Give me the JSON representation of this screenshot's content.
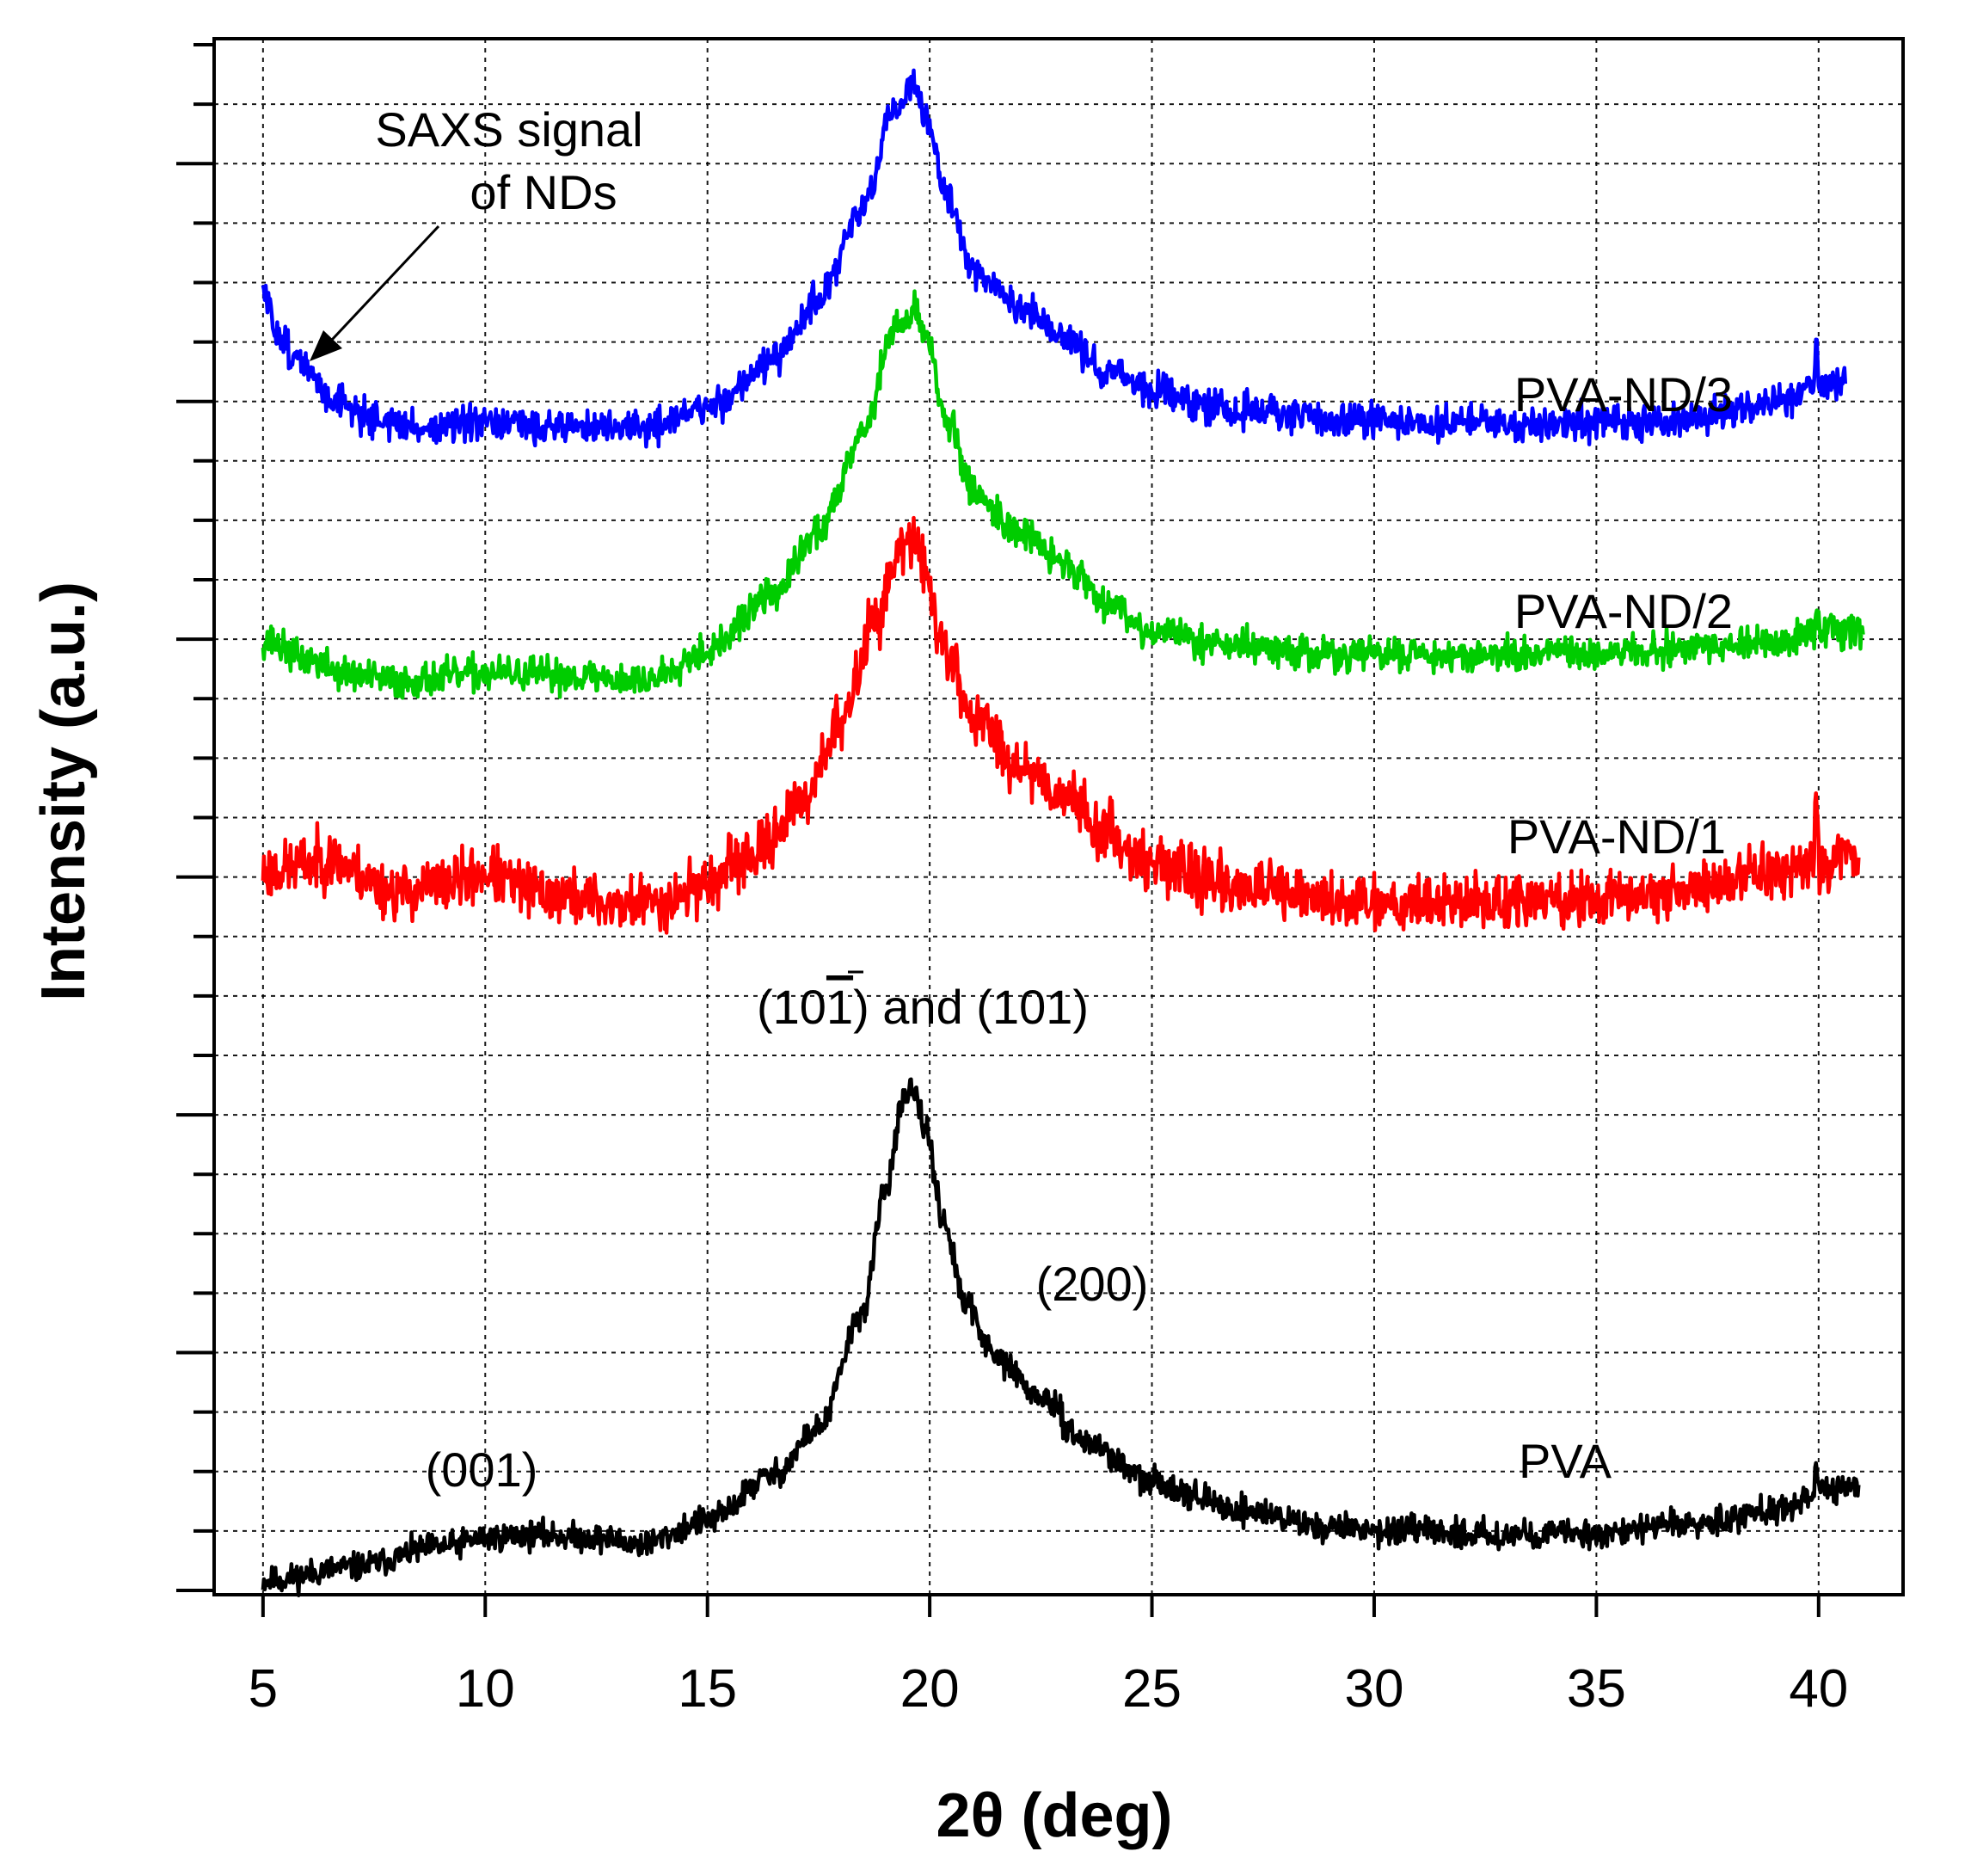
{
  "chart_data": {
    "type": "line",
    "title": "",
    "xlabel": "2θ (deg)",
    "ylabel": "Intensity (a.u.)",
    "xlim": [
      3.9,
      41.9
    ],
    "ylim": [
      0,
      100
    ],
    "xticks": [
      5,
      10,
      15,
      20,
      25,
      30,
      35,
      40
    ],
    "y_tick_count": 27,
    "grid": true,
    "series": [
      {
        "name": "PVA",
        "label": "PVA",
        "color": "#000000",
        "noise": 0.45,
        "seed": 11,
        "points": [
          [
            5,
            0.6
          ],
          [
            7,
            1.5
          ],
          [
            9,
            2.8
          ],
          [
            10,
            3.4
          ],
          [
            11,
            3.6
          ],
          [
            12.5,
            3.4
          ],
          [
            13.5,
            3.0
          ],
          [
            15,
            4.5
          ],
          [
            16.5,
            7.5
          ],
          [
            17.5,
            10.5
          ],
          [
            18.5,
            18
          ],
          [
            19,
            26
          ],
          [
            19.4,
            31.5
          ],
          [
            19.6,
            32.3
          ],
          [
            19.9,
            30
          ],
          [
            20.3,
            24
          ],
          [
            20.8,
            18.5
          ],
          [
            21.5,
            15
          ],
          [
            22.5,
            12.5
          ],
          [
            23.5,
            9.6
          ],
          [
            25,
            7
          ],
          [
            27,
            5.2
          ],
          [
            29,
            4.1
          ],
          [
            31,
            3.8
          ],
          [
            33,
            3.6
          ],
          [
            35,
            3.7
          ],
          [
            37,
            4.3
          ],
          [
            39,
            5.2
          ],
          [
            40,
            6.2
          ],
          [
            40.9,
            7.0
          ]
        ],
        "spikes": [
          [
            39.95,
            2.0
          ]
        ]
      },
      {
        "name": "PVA-ND/1",
        "label": "PVA-ND/1",
        "color": "#ff0000",
        "noise": 0.9,
        "seed": 23,
        "points": [
          [
            5,
            46.5
          ],
          [
            6.5,
            47.2
          ],
          [
            8,
            45.2
          ],
          [
            9,
            45.6
          ],
          [
            10,
            46.4
          ],
          [
            11,
            45.3
          ],
          [
            12,
            44.8
          ],
          [
            13,
            44.3
          ],
          [
            14,
            44.6
          ],
          [
            15,
            45.8
          ],
          [
            16,
            47.5
          ],
          [
            17,
            50.5
          ],
          [
            18,
            56
          ],
          [
            18.8,
            63
          ],
          [
            19.3,
            67
          ],
          [
            19.6,
            68
          ],
          [
            19.9,
            66
          ],
          [
            20.3,
            61
          ],
          [
            21,
            56.5
          ],
          [
            22,
            53.5
          ],
          [
            23,
            51.5
          ],
          [
            24,
            49
          ],
          [
            25,
            47
          ],
          [
            27,
            45.5
          ],
          [
            29,
            44.6
          ],
          [
            31,
            44.6
          ],
          [
            33,
            44.5
          ],
          [
            35,
            44.7
          ],
          [
            37,
            45.4
          ],
          [
            39,
            46.5
          ],
          [
            40,
            47.2
          ],
          [
            40.9,
            48.2
          ]
        ],
        "spikes": [
          [
            39.95,
            5.5
          ],
          [
            6.5,
            1.2
          ]
        ]
      },
      {
        "name": "PVA-ND/2",
        "label": "PVA-ND/2",
        "color": "#00cc00",
        "noise": 0.55,
        "seed": 37,
        "points": [
          [
            5,
            61.5
          ],
          [
            6,
            60.2
          ],
          [
            7,
            59.2
          ],
          [
            8,
            58.8
          ],
          [
            10,
            59.3
          ],
          [
            12,
            59.2
          ],
          [
            13.5,
            58.8
          ],
          [
            15,
            60.8
          ],
          [
            16.5,
            64.5
          ],
          [
            17.5,
            68.5
          ],
          [
            18.5,
            75
          ],
          [
            19.2,
            81.5
          ],
          [
            19.6,
            82.8
          ],
          [
            19.9,
            81.5
          ],
          [
            20.4,
            75.5
          ],
          [
            21,
            71
          ],
          [
            22,
            68.5
          ],
          [
            23,
            66.5
          ],
          [
            24,
            64
          ],
          [
            25,
            62
          ],
          [
            27,
            61.1
          ],
          [
            29,
            60.5
          ],
          [
            31,
            60.6
          ],
          [
            33,
            60.5
          ],
          [
            35,
            60.6
          ],
          [
            37,
            60.9
          ],
          [
            39,
            61.3
          ],
          [
            40,
            62
          ],
          [
            41,
            62.2
          ]
        ],
        "spikes": [
          [
            39.95,
            1.5
          ]
        ]
      },
      {
        "name": "PVA-ND/3",
        "label": "PVA-ND/3",
        "color": "#0000ff",
        "noise": 0.55,
        "seed": 51,
        "points": [
          [
            5,
            84
          ],
          [
            5.3,
            81.5
          ],
          [
            5.8,
            79.5
          ],
          [
            6.5,
            77.2
          ],
          [
            7.5,
            75.8
          ],
          [
            8.5,
            75.2
          ],
          [
            10,
            75.4
          ],
          [
            12,
            75.3
          ],
          [
            13.5,
            75.2
          ],
          [
            15,
            76.5
          ],
          [
            16.5,
            79.5
          ],
          [
            17.5,
            83.5
          ],
          [
            18.5,
            89.5
          ],
          [
            19.2,
            95.5
          ],
          [
            19.6,
            97.3
          ],
          [
            19.9,
            95.5
          ],
          [
            20.4,
            90
          ],
          [
            21,
            85.5
          ],
          [
            22,
            83
          ],
          [
            23,
            81
          ],
          [
            24,
            79
          ],
          [
            25,
            77.5
          ],
          [
            27,
            76.3
          ],
          [
            29,
            75.8
          ],
          [
            31,
            75.6
          ],
          [
            33,
            75.4
          ],
          [
            35,
            75.6
          ],
          [
            37,
            75.7
          ],
          [
            39,
            76.8
          ],
          [
            40,
            77.8
          ],
          [
            40.6,
            78.2
          ]
        ],
        "spikes": [
          [
            39.95,
            2.5
          ]
        ]
      }
    ],
    "annotations": {
      "saxs": "SAXS signal",
      "saxs_line2": "of NDs",
      "hkl_101": "(10",
      "hkl_101_one": "1",
      "hkl_101_rest": ") and (101)",
      "hkl_200": "(200)",
      "hkl_001": "(001)"
    }
  }
}
